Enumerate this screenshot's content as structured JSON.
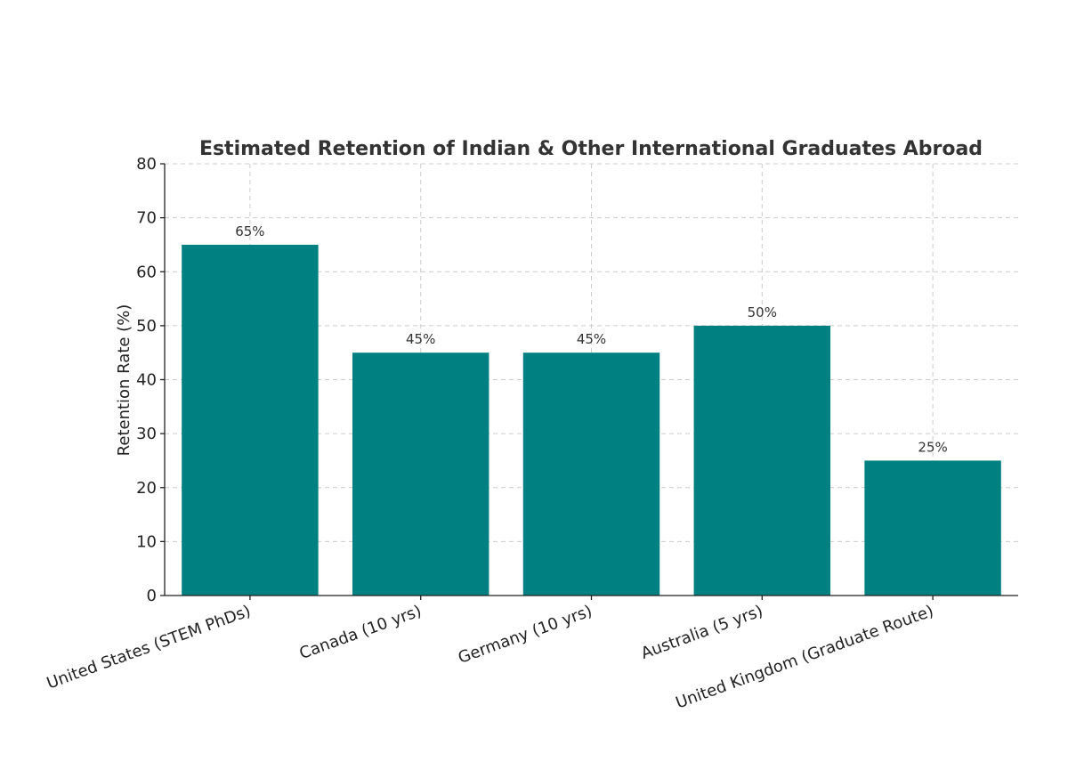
{
  "chart_data": {
    "type": "bar",
    "title": "Estimated Retention of Indian & Other International Graduates Abroad",
    "ylabel": "Retention Rate (%)",
    "xlabel": "",
    "categories": [
      "United States (STEM PhDs)",
      "Canada (10 yrs)",
      "Germany (10 yrs)",
      "Australia (5 yrs)",
      "United Kingdom (Graduate Route)"
    ],
    "values": [
      65,
      45,
      45,
      50,
      25
    ],
    "value_labels": [
      "65%",
      "45%",
      "45%",
      "50%",
      "25%"
    ],
    "ylim": [
      0,
      80
    ],
    "yticks": [
      0,
      10,
      20,
      30,
      40,
      50,
      60,
      70,
      80
    ],
    "grid": true,
    "bar_color": "#008080"
  }
}
